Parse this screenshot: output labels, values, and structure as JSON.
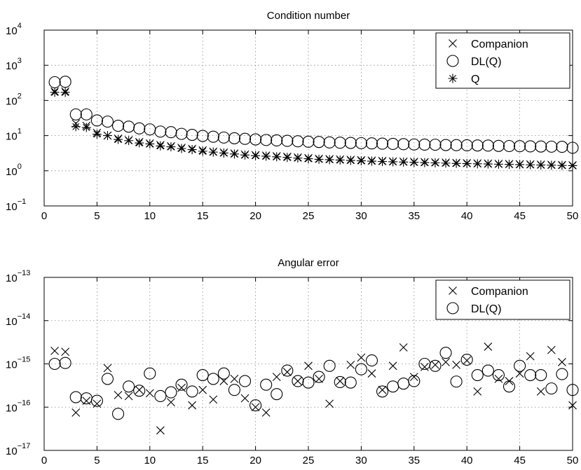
{
  "chart_data": [
    {
      "type": "scatter",
      "title": "Condition number",
      "xlabel": "",
      "ylabel": "",
      "yscale": "log",
      "xlim": [
        0,
        50
      ],
      "ylim": [
        0.1,
        10000
      ],
      "grid": true,
      "legend": "top-right",
      "xticks": [
        0,
        5,
        10,
        15,
        20,
        25,
        30,
        35,
        40,
        45,
        50
      ],
      "yticks": [
        {
          "base": "10",
          "exp": "4",
          "value": 10000
        },
        {
          "base": "10",
          "exp": "3",
          "value": 1000
        },
        {
          "base": "10",
          "exp": "2",
          "value": 100
        },
        {
          "base": "10",
          "exp": "1",
          "value": 10
        },
        {
          "base": "10",
          "exp": "0",
          "value": 1
        },
        {
          "base": "10",
          "exp": "−1",
          "value": 0.1
        }
      ],
      "x": [
        1,
        2,
        3,
        4,
        5,
        6,
        7,
        8,
        9,
        10,
        11,
        12,
        13,
        14,
        15,
        16,
        17,
        18,
        19,
        20,
        21,
        22,
        23,
        24,
        25,
        26,
        27,
        28,
        29,
        30,
        31,
        32,
        33,
        34,
        35,
        36,
        37,
        38,
        39,
        40,
        41,
        42,
        43,
        44,
        45,
        46,
        47,
        48,
        49,
        50
      ],
      "series": [
        {
          "name": "Companion",
          "marker": "x",
          "values": [
            180,
            180,
            22,
            19,
            12,
            10,
            8.2,
            7.4,
            6.6,
            6.0,
            5.4,
            5.0,
            4.5,
            4.2,
            3.8,
            3.5,
            3.3,
            3.1,
            2.9,
            2.8,
            2.7,
            2.6,
            2.5,
            2.4,
            2.3,
            2.2,
            2.15,
            2.1,
            2.05,
            2.0,
            1.95,
            1.9,
            1.85,
            1.82,
            1.8,
            1.77,
            1.74,
            1.71,
            1.68,
            1.65,
            1.62,
            1.6,
            1.58,
            1.56,
            1.54,
            1.52,
            1.5,
            1.48,
            1.46,
            1.44
          ]
        },
        {
          "name": "DL(Q)",
          "marker": "circle",
          "values": [
            330,
            340,
            40,
            40,
            27,
            25,
            19,
            18,
            16,
            15,
            13,
            12.5,
            11.2,
            10.5,
            9.8,
            9.3,
            8.8,
            8.4,
            8.1,
            7.8,
            7.5,
            7.3,
            7.1,
            6.9,
            6.7,
            6.6,
            6.4,
            6.3,
            6.2,
            6.1,
            6.0,
            5.9,
            5.8,
            5.7,
            5.6,
            5.55,
            5.5,
            5.4,
            5.35,
            5.3,
            5.25,
            5.2,
            5.1,
            5.05,
            5.0,
            4.95,
            4.9,
            4.85,
            4.8,
            4.5
          ]
        },
        {
          "name": "Q",
          "marker": "asterisk",
          "values": [
            170,
            170,
            18,
            17,
            11,
            10,
            7.8,
            7.2,
            6.2,
            5.8,
            5.1,
            4.8,
            4.3,
            4.0,
            3.6,
            3.4,
            3.2,
            3.0,
            2.8,
            2.7,
            2.6,
            2.5,
            2.4,
            2.3,
            2.2,
            2.12,
            2.07,
            2.02,
            1.97,
            1.92,
            1.88,
            1.84,
            1.8,
            1.77,
            1.74,
            1.71,
            1.68,
            1.65,
            1.62,
            1.6,
            1.58,
            1.56,
            1.54,
            1.52,
            1.5,
            1.48,
            1.46,
            1.44,
            1.42,
            1.4
          ]
        }
      ]
    },
    {
      "type": "scatter",
      "title": "Angular error",
      "xlabel": "",
      "ylabel": "",
      "yscale": "log",
      "xlim": [
        0,
        50
      ],
      "ylim": [
        1e-17,
        1e-13
      ],
      "grid": true,
      "legend": "top-right",
      "xticks": [
        0,
        5,
        10,
        15,
        20,
        25,
        30,
        35,
        40,
        45,
        50
      ],
      "yticks": [
        {
          "base": "10",
          "exp": "−13",
          "value": 1e-13
        },
        {
          "base": "10",
          "exp": "−14",
          "value": 1e-14
        },
        {
          "base": "10",
          "exp": "−15",
          "value": 1e-15
        },
        {
          "base": "10",
          "exp": "−16",
          "value": 1e-16
        },
        {
          "base": "10",
          "exp": "−17",
          "value": 1e-17
        }
      ],
      "x": [
        1,
        2,
        3,
        4,
        5,
        6,
        7,
        8,
        9,
        10,
        11,
        12,
        13,
        14,
        15,
        16,
        17,
        18,
        19,
        20,
        21,
        22,
        23,
        24,
        25,
        26,
        27,
        28,
        29,
        30,
        31,
        32,
        33,
        34,
        35,
        36,
        37,
        38,
        39,
        40,
        41,
        42,
        43,
        44,
        45,
        46,
        47,
        48,
        49,
        50
      ],
      "series": [
        {
          "name": "Companion",
          "marker": "x",
          "values": [
            2e-15,
            1.9e-15,
            7.5e-17,
            1.4e-16,
            1.2e-16,
            8e-16,
            1.9e-16,
            1.8e-16,
            2.5e-16,
            2.1e-16,
            2.9e-17,
            1.3e-16,
            2.8e-16,
            1.1e-16,
            2.5e-16,
            1.5e-16,
            4e-16,
            4.5e-16,
            1.6e-16,
            1e-16,
            7.5e-17,
            5e-16,
            6.5e-16,
            4e-16,
            9e-16,
            4.5e-16,
            1.2e-16,
            4e-16,
            9.5e-16,
            1.4e-15,
            6e-16,
            2.5e-16,
            9e-16,
            2.4e-15,
            5e-16,
            8.5e-16,
            9.5e-16,
            1.1e-15,
            9.5e-16,
            1.2e-15,
            2.3e-16,
            2.5e-15,
            4.5e-16,
            4e-16,
            6e-16,
            1.5e-15,
            2.3e-16,
            2.1e-15,
            1.1e-15,
            1.1e-16
          ]
        },
        {
          "name": "DL(Q)",
          "marker": "circle",
          "values": [
            1e-15,
            1.05e-15,
            1.7e-16,
            1.6e-16,
            1.4e-16,
            4.5e-16,
            7e-17,
            3e-16,
            2.4e-16,
            6e-16,
            1.8e-16,
            2.2e-16,
            3.3e-16,
            2.3e-16,
            5.5e-16,
            4.5e-16,
            6e-16,
            2.5e-16,
            4e-16,
            1.1e-16,
            3.3e-16,
            2e-16,
            7e-16,
            4e-16,
            3.7e-16,
            5e-16,
            9e-16,
            3.8e-16,
            3.7e-16,
            7.5e-16,
            1.2e-15,
            2.3e-16,
            3e-16,
            3.5e-16,
            4e-16,
            1e-15,
            9e-16,
            1.8e-15,
            3.9e-16,
            1.25e-15,
            5.5e-16,
            7e-16,
            5.5e-16,
            3e-16,
            9e-16,
            5.5e-16,
            5.5e-16,
            2.7e-16,
            5.8e-16,
            2.5e-16
          ]
        }
      ]
    }
  ]
}
